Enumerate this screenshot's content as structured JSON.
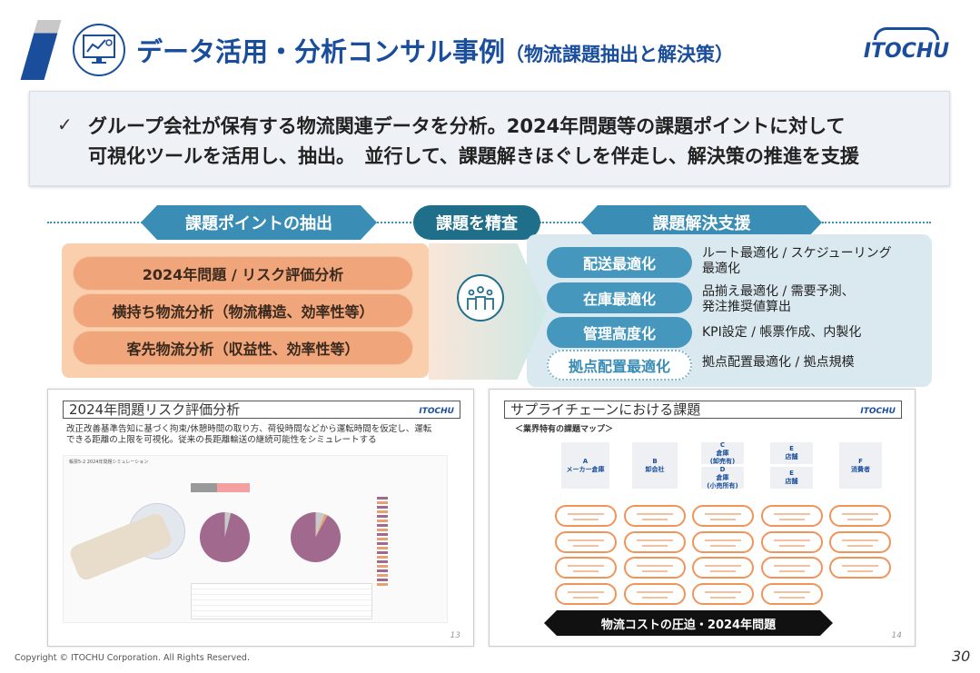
{
  "header": {
    "title": "データ活用・分析コンサル事例",
    "subtitle": "（物流課題抽出と解決策）",
    "logo": "ITOCHU"
  },
  "summary": {
    "check": "✓",
    "line1": "グループ会社が保有する物流関連データを分析。2024年問題等の課題ポイントに対して",
    "line2": "可視化ツールを活用し、抽出。　並行して、課題解きほぐしを伴走し、解決策の推進を支援"
  },
  "flow": {
    "left_label": "課題ポイントの抽出",
    "center_label": "課題を精査",
    "right_label": "課題解決支援",
    "points": [
      "2024年問題 / リスク評価分析",
      "横持ち物流分析（物流構造、効率性等）",
      "客先物流分析（収益性、効率性等）"
    ],
    "solutions": [
      {
        "label": "配送最適化",
        "desc1": "ルート最適化 / スケジューリング",
        "desc2": "最適化"
      },
      {
        "label": "在庫最適化",
        "desc1": "品揃え最適化 / 需要予測、",
        "desc2": "発注推奨値算出"
      },
      {
        "label": "管理高度化",
        "desc1": "KPI設定 / 帳票作成、内製化",
        "desc2": ""
      },
      {
        "label": "拠点配置最適化",
        "desc1": "拠点配置最適化 / 拠点規模",
        "desc2": ""
      }
    ]
  },
  "thumb_left": {
    "title": "2024年問題リスク評価分析",
    "logo": "ITOCHU",
    "line1": "改正改善基準告知に基づく拘束/休憩時間の取り方、荷役時間などから運転時間を仮定し、運転",
    "line2": "できる距離の上限を可視化。従来の長距離輸送の継続可能性をシミュレートする",
    "dash_title": "帳票5-2 2024年問題シミュレーション",
    "page": "13"
  },
  "thumb_right": {
    "title": "サプライチェーンにおける課題",
    "logo": "ITOCHU",
    "subtitle": "＜業界特有の課題マップ＞",
    "nodes": [
      {
        "id": "A",
        "name": "メーカー倉庫"
      },
      {
        "id": "B",
        "name": "卸会社"
      },
      {
        "id": "C",
        "name": "倉庫",
        "note": "(卸売有)"
      },
      {
        "id": "D",
        "name": "倉庫",
        "note": "(小売所有)"
      },
      {
        "id": "E",
        "name": "店舗"
      },
      {
        "id": "E",
        "name": "店舗"
      },
      {
        "id": "F",
        "name": "消費者"
      }
    ],
    "banner": "物流コストの圧迫・2024年問題",
    "page": "14"
  },
  "footer": {
    "copyright": "Copyright © ITOCHU Corporation. All Rights Reserved.",
    "page": "30"
  }
}
